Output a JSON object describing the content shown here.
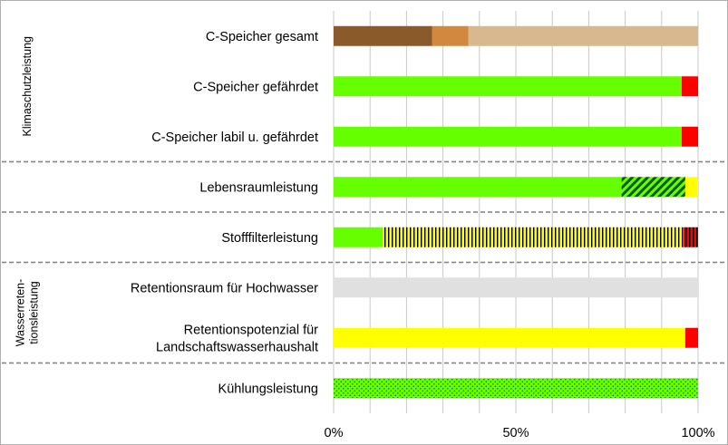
{
  "chart_data": {
    "type": "bar",
    "orientation": "horizontal",
    "stacked": true,
    "xlim": [
      0,
      100
    ],
    "x_ticks": [
      "0%",
      "50%",
      "100%"
    ],
    "grid": true,
    "groups": [
      {
        "label": "Klimaschutzleistung",
        "rows": [
          0,
          1,
          2
        ]
      },
      {
        "label": "",
        "rows": [
          3
        ]
      },
      {
        "label": "",
        "rows": [
          4
        ]
      },
      {
        "label": "Wasserreten-\ntionsleistung",
        "rows": [
          5,
          6
        ]
      },
      {
        "label": "",
        "rows": [
          7
        ]
      }
    ],
    "categories": [
      "C-Speicher gesamt",
      "C-Speicher gefährdet",
      "C-Speicher labil u. gefährdet",
      "Lebensraumleistung",
      "Stofffilterleistung",
      "Retentionsraum für Hochwasser",
      "Retentionspotenzial für\nLandschaftswasserhaushalt",
      "Kühlungsleistung"
    ],
    "rows": [
      {
        "segments": [
          {
            "value": 27,
            "color": "#8b5a2b",
            "pattern": "solid"
          },
          {
            "value": 10,
            "color": "#d2883e",
            "pattern": "solid"
          },
          {
            "value": 63,
            "color": "#d8b88f",
            "pattern": "solid"
          }
        ]
      },
      {
        "segments": [
          {
            "value": 95.5,
            "color": "#66ff00",
            "pattern": "solid"
          },
          {
            "value": 4.5,
            "color": "#ff0000",
            "pattern": "solid"
          }
        ]
      },
      {
        "segments": [
          {
            "value": 95.5,
            "color": "#66ff00",
            "pattern": "solid"
          },
          {
            "value": 4.5,
            "color": "#ff0000",
            "pattern": "solid"
          }
        ]
      },
      {
        "segments": [
          {
            "value": 79,
            "color": "#66ff00",
            "pattern": "solid"
          },
          {
            "value": 17.5,
            "color": "#66ff00",
            "pattern": "diagonal"
          },
          {
            "value": 3.5,
            "color": "#ffff00",
            "pattern": "solid"
          }
        ]
      },
      {
        "segments": [
          {
            "value": 13.5,
            "color": "#66ff00",
            "pattern": "solid"
          },
          {
            "value": 82.5,
            "color": "#ffff00",
            "pattern": "vertical"
          },
          {
            "value": 4,
            "color": "#ff0000",
            "pattern": "vertical"
          }
        ]
      },
      {
        "segments": [
          {
            "value": 100,
            "color": "#e0e0e0",
            "pattern": "solid"
          }
        ]
      },
      {
        "segments": [
          {
            "value": 96.5,
            "color": "#ffff00",
            "pattern": "solid"
          },
          {
            "value": 3.5,
            "color": "#ff0000",
            "pattern": "solid"
          }
        ]
      },
      {
        "segments": [
          {
            "value": 100,
            "color": "#66ff00",
            "pattern": "dots"
          }
        ]
      }
    ]
  }
}
